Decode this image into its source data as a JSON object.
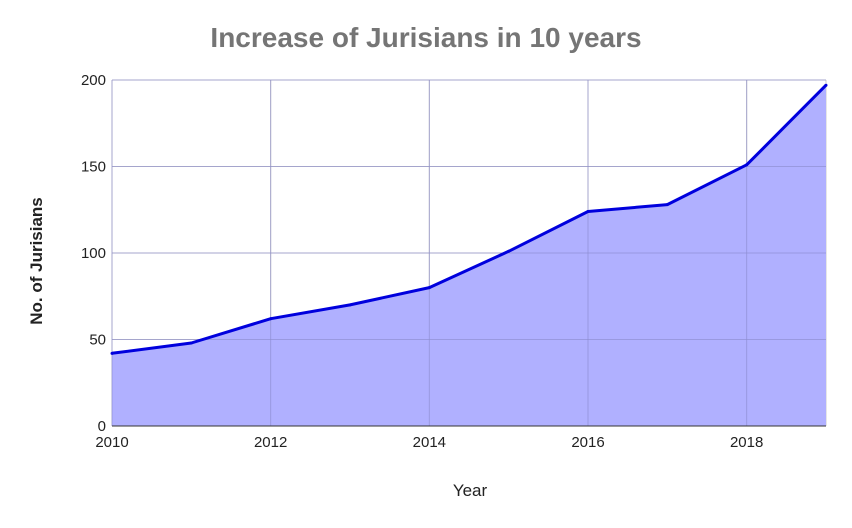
{
  "chart_data": {
    "type": "area",
    "title": "Increase of Jurisians in 10 years",
    "xlabel": "Year",
    "ylabel": "No. of Jurisians",
    "x": [
      2010,
      2011,
      2012,
      2013,
      2014,
      2015,
      2016,
      2017,
      2018,
      2019
    ],
    "values": [
      42,
      48,
      62,
      70,
      80,
      101,
      124,
      128,
      151,
      197
    ],
    "xlim": [
      2010,
      2019
    ],
    "ylim": [
      0,
      200
    ],
    "x_ticks": [
      2010,
      2012,
      2014,
      2016,
      2018
    ],
    "y_ticks": [
      0,
      50,
      100,
      150,
      200
    ],
    "grid": true,
    "legend": "none",
    "colors": {
      "line": "#0000dd",
      "fill": "#b0b0ff",
      "grid": "#cccccc",
      "title": "#757575"
    }
  }
}
